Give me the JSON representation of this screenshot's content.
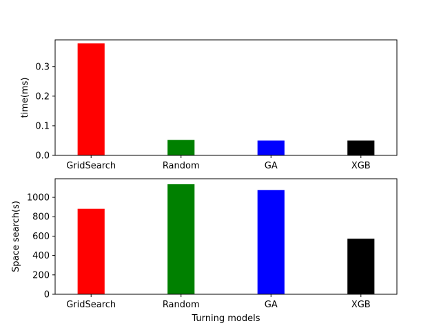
{
  "chart_data": [
    {
      "type": "bar",
      "categories": [
        "GridSearch",
        "Random",
        "GA",
        "XGB"
      ],
      "values": [
        0.378,
        0.052,
        0.05,
        0.05
      ],
      "colors": [
        "#ff0000",
        "#008000",
        "#0000ff",
        "#000000"
      ],
      "xlabel": "",
      "ylabel": "time(ms)",
      "ylim": [
        0,
        0.39
      ],
      "yticks": [
        0.0,
        0.1,
        0.2,
        0.3
      ],
      "ytick_labels": [
        "0.0",
        "0.1",
        "0.2",
        "0.3"
      ],
      "grid": false,
      "legend": "none"
    },
    {
      "type": "bar",
      "categories": [
        "GridSearch",
        "Random",
        "GA",
        "XGB"
      ],
      "values": [
        882,
        1135,
        1076,
        573
      ],
      "colors": [
        "#ff0000",
        "#008000",
        "#0000ff",
        "#000000"
      ],
      "xlabel": "Turning models",
      "ylabel": "Space search(s)",
      "ylim": [
        0,
        1192
      ],
      "yticks": [
        0,
        200,
        400,
        600,
        800,
        1000
      ],
      "ytick_labels": [
        "0",
        "200",
        "400",
        "600",
        "800",
        "1000"
      ],
      "grid": false,
      "legend": "none"
    }
  ]
}
